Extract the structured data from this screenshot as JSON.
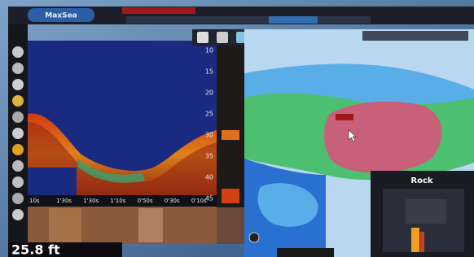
{
  "header": {
    "logo": "MaxSea"
  },
  "sonar": {
    "depth_scale": [
      "10",
      "15",
      "20",
      "25",
      "30",
      "35",
      "40",
      "45"
    ],
    "time_scale": [
      "10s",
      "1'30s",
      "1'30s",
      "1'10s",
      "0'50s",
      "0'30s",
      "0'10s"
    ]
  },
  "readout": {
    "depth": "25.8 ft"
  },
  "info_panel": {
    "title": "Rock"
  }
}
